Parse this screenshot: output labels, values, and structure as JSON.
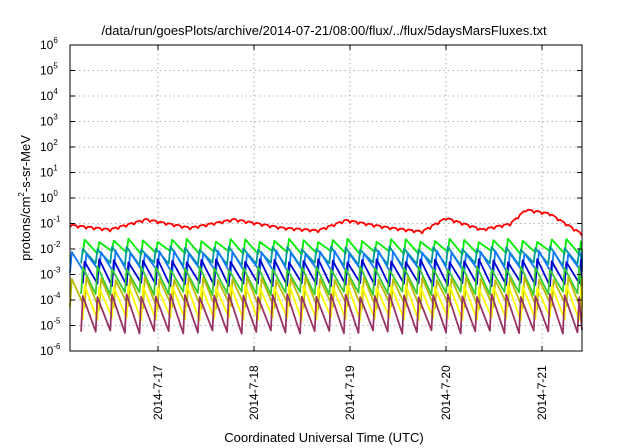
{
  "chart_data": {
    "type": "line",
    "title": "/data/run/goesPlots/archive/2014-07-21/08:00/flux/../flux/5daysMarsFluxes.txt",
    "xlabel": "Coordinated Universal Time (UTC)",
    "ylabel_main": "protons/cm",
    "ylabel_sup": "2",
    "ylabel_rest": "-s-sr-MeV",
    "x_range": [
      "2014-07-16T02:00",
      "2014-07-21T10:00"
    ],
    "y_scale": "log",
    "y_range": [
      1e-06,
      1000000.0
    ],
    "grid": true,
    "x_ticks": [
      "2014-7-17",
      "2014-7-18",
      "2014-7-19",
      "2014-7-20",
      "2014-7-21"
    ],
    "y_ticks": [
      {
        "base": "10",
        "exp": "-6"
      },
      {
        "base": "10",
        "exp": "-5"
      },
      {
        "base": "10",
        "exp": "-4"
      },
      {
        "base": "10",
        "exp": "-3"
      },
      {
        "base": "10",
        "exp": "-2"
      },
      {
        "base": "10",
        "exp": "-1"
      },
      {
        "base": "10",
        "exp": "0"
      },
      {
        "base": "10",
        "exp": "1"
      },
      {
        "base": "10",
        "exp": "2"
      },
      {
        "base": "10",
        "exp": "3"
      },
      {
        "base": "10",
        "exp": "4"
      },
      {
        "base": "10",
        "exp": "5"
      },
      {
        "base": "10",
        "exp": "6"
      }
    ],
    "cycle_hours": 3.65,
    "series": [
      {
        "color": "#ff0000",
        "shape": "envelope",
        "envelope": [
          {
            "t": "2014-07-16T02:00",
            "v": 0.09
          },
          {
            "t": "2014-07-16T12:00",
            "v": 0.06
          },
          {
            "t": "2014-07-16T21:00",
            "v": 0.15
          },
          {
            "t": "2014-07-17T08:00",
            "v": 0.07
          },
          {
            "t": "2014-07-17T19:00",
            "v": 0.15
          },
          {
            "t": "2014-07-18T07:00",
            "v": 0.07
          },
          {
            "t": "2014-07-18T16:00",
            "v": 0.055
          },
          {
            "t": "2014-07-18T23:00",
            "v": 0.14
          },
          {
            "t": "2014-07-19T10:00",
            "v": 0.07
          },
          {
            "t": "2014-07-19T18:00",
            "v": 0.05
          },
          {
            "t": "2014-07-20T00:00",
            "v": 0.17
          },
          {
            "t": "2014-07-20T09:00",
            "v": 0.06
          },
          {
            "t": "2014-07-20T16:00",
            "v": 0.1
          },
          {
            "t": "2014-07-20T20:00",
            "v": 0.36
          },
          {
            "t": "2014-07-21T02:00",
            "v": 0.25
          },
          {
            "t": "2014-07-21T10:00",
            "v": 0.04
          }
        ]
      },
      {
        "color": "#00ee00",
        "shape": "sawtooth",
        "peak": 0.022,
        "trough": 0.007
      },
      {
        "color": "#009999",
        "shape": "sawtooth",
        "peak": 0.011,
        "trough": 0.0025
      },
      {
        "color": "#1177ff",
        "shape": "sawtooth",
        "peak": 0.0075,
        "trough": 0.0012
      },
      {
        "color": "#0000cc",
        "shape": "sawtooth",
        "peak": 0.0035,
        "trough": 0.0004
      },
      {
        "color": "#33cc33",
        "shape": "sawtooth",
        "peak": 0.0018,
        "trough": 0.00018
      },
      {
        "color": "#bbbb00",
        "shape": "sawtooth",
        "peak": 0.0007,
        "trough": 5e-05
      },
      {
        "color": "#ffff00",
        "shape": "sawtooth",
        "peak": 0.00035,
        "trough": 1.8e-05
      },
      {
        "color": "#993366",
        "shape": "sawtooth",
        "peak": 0.00015,
        "trough": 5.5e-06
      }
    ]
  }
}
